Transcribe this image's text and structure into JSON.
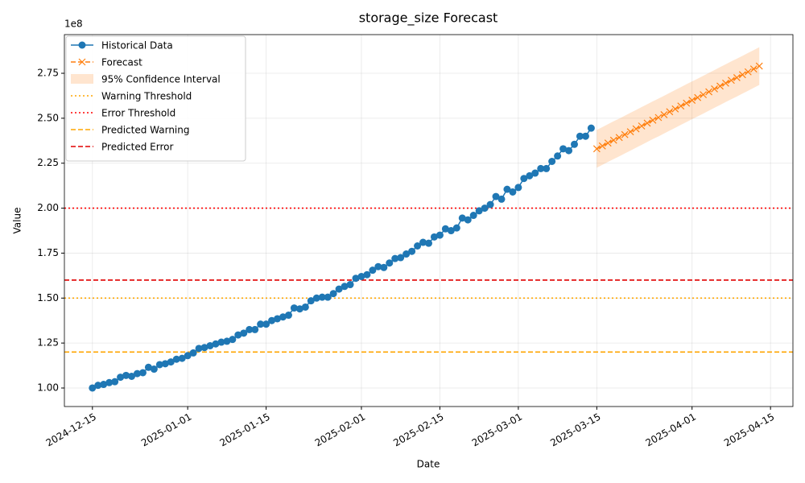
{
  "chart_data": {
    "type": "line",
    "title": "storage_size Forecast",
    "x_label": "Date",
    "y_label": "Value",
    "y_offset_label": "1e8",
    "grid": true,
    "legend_loc": "upper left",
    "xlim": [
      "2024-12-10",
      "2025-04-19"
    ],
    "xticks": [
      "2024-12-15",
      "2025-01-01",
      "2025-01-15",
      "2025-02-01",
      "2025-02-15",
      "2025-03-01",
      "2025-03-15",
      "2025-04-01",
      "2025-04-15"
    ],
    "ylim": [
      0.897,
      2.965
    ],
    "yticks": [
      {
        "value": 1.0,
        "label": "1.00"
      },
      {
        "value": 1.25,
        "label": "1.25"
      },
      {
        "value": 1.5,
        "label": "1.50"
      },
      {
        "value": 1.75,
        "label": "1.75"
      },
      {
        "value": 2.0,
        "label": "2.00"
      },
      {
        "value": 2.25,
        "label": "2.25"
      },
      {
        "value": 2.5,
        "label": "2.50"
      },
      {
        "value": 2.75,
        "label": "2.75"
      }
    ],
    "series": [
      {
        "name": "Historical Data",
        "kind": "line",
        "color": "#1f77b4",
        "marker": "o",
        "linestyle": "solid",
        "x": [
          "2024-12-15",
          "2024-12-16",
          "2024-12-17",
          "2024-12-18",
          "2024-12-19",
          "2024-12-20",
          "2024-12-21",
          "2024-12-22",
          "2024-12-23",
          "2024-12-24",
          "2024-12-25",
          "2024-12-26",
          "2024-12-27",
          "2024-12-28",
          "2024-12-29",
          "2024-12-30",
          "2024-12-31",
          "2025-01-01",
          "2025-01-02",
          "2025-01-03",
          "2025-01-04",
          "2025-01-05",
          "2025-01-06",
          "2025-01-07",
          "2025-01-08",
          "2025-01-09",
          "2025-01-10",
          "2025-01-11",
          "2025-01-12",
          "2025-01-13",
          "2025-01-14",
          "2025-01-15",
          "2025-01-16",
          "2025-01-17",
          "2025-01-18",
          "2025-01-19",
          "2025-01-20",
          "2025-01-21",
          "2025-01-22",
          "2025-01-23",
          "2025-01-24",
          "2025-01-25",
          "2025-01-26",
          "2025-01-27",
          "2025-01-28",
          "2025-01-29",
          "2025-01-30",
          "2025-01-31",
          "2025-02-01",
          "2025-02-02",
          "2025-02-03",
          "2025-02-04",
          "2025-02-05",
          "2025-02-06",
          "2025-02-07",
          "2025-02-08",
          "2025-02-09",
          "2025-02-10",
          "2025-02-11",
          "2025-02-12",
          "2025-02-13",
          "2025-02-14",
          "2025-02-15",
          "2025-02-16",
          "2025-02-17",
          "2025-02-18",
          "2025-02-19",
          "2025-02-20",
          "2025-02-21",
          "2025-02-22",
          "2025-02-23",
          "2025-02-24",
          "2025-02-25",
          "2025-02-26",
          "2025-02-27",
          "2025-02-28",
          "2025-03-01",
          "2025-03-02",
          "2025-03-03",
          "2025-03-04",
          "2025-03-05",
          "2025-03-06",
          "2025-03-07",
          "2025-03-08",
          "2025-03-09",
          "2025-03-10",
          "2025-03-11",
          "2025-03-12",
          "2025-03-13",
          "2025-03-14"
        ],
        "values": [
          1.0,
          1.015,
          1.02,
          1.03,
          1.035,
          1.06,
          1.07,
          1.065,
          1.08,
          1.085,
          1.115,
          1.105,
          1.13,
          1.135,
          1.145,
          1.16,
          1.165,
          1.18,
          1.195,
          1.22,
          1.225,
          1.235,
          1.245,
          1.255,
          1.26,
          1.27,
          1.295,
          1.305,
          1.325,
          1.325,
          1.355,
          1.355,
          1.375,
          1.385,
          1.395,
          1.405,
          1.445,
          1.44,
          1.45,
          1.485,
          1.5,
          1.505,
          1.505,
          1.525,
          1.55,
          1.565,
          1.575,
          1.61,
          1.62,
          1.63,
          1.655,
          1.675,
          1.67,
          1.695,
          1.72,
          1.725,
          1.745,
          1.76,
          1.79,
          1.81,
          1.805,
          1.84,
          1.85,
          1.885,
          1.875,
          1.89,
          1.945,
          1.935,
          1.96,
          1.985,
          2.0,
          2.02,
          2.065,
          2.05,
          2.105,
          2.09,
          2.115,
          2.165,
          2.18,
          2.195,
          2.22,
          2.22,
          2.26,
          2.29,
          2.33,
          2.32,
          2.355,
          2.4,
          2.4,
          2.445
        ]
      },
      {
        "name": "Forecast",
        "kind": "line",
        "color": "#ff7f0e",
        "marker": "x",
        "linestyle": "dashed",
        "x": [
          "2025-03-15",
          "2025-03-16",
          "2025-03-17",
          "2025-03-18",
          "2025-03-19",
          "2025-03-20",
          "2025-03-21",
          "2025-03-22",
          "2025-03-23",
          "2025-03-24",
          "2025-03-25",
          "2025-03-26",
          "2025-03-27",
          "2025-03-28",
          "2025-03-29",
          "2025-03-30",
          "2025-03-31",
          "2025-04-01",
          "2025-04-02",
          "2025-04-03",
          "2025-04-04",
          "2025-04-05",
          "2025-04-06",
          "2025-04-07",
          "2025-04-08",
          "2025-04-09",
          "2025-04-10",
          "2025-04-11",
          "2025-04-12",
          "2025-04-13"
        ],
        "values": [
          2.33,
          2.346,
          2.362,
          2.378,
          2.393,
          2.409,
          2.425,
          2.441,
          2.457,
          2.473,
          2.489,
          2.504,
          2.52,
          2.536,
          2.552,
          2.568,
          2.584,
          2.6,
          2.615,
          2.631,
          2.647,
          2.663,
          2.679,
          2.695,
          2.711,
          2.726,
          2.742,
          2.758,
          2.774,
          2.79
        ]
      },
      {
        "name": "95% Confidence Interval",
        "kind": "band",
        "color": "#ff7f0e",
        "x": [
          "2025-03-15",
          "2025-03-16",
          "2025-03-17",
          "2025-03-18",
          "2025-03-19",
          "2025-03-20",
          "2025-03-21",
          "2025-03-22",
          "2025-03-23",
          "2025-03-24",
          "2025-03-25",
          "2025-03-26",
          "2025-03-27",
          "2025-03-28",
          "2025-03-29",
          "2025-03-30",
          "2025-03-31",
          "2025-04-01",
          "2025-04-02",
          "2025-04-03",
          "2025-04-04",
          "2025-04-05",
          "2025-04-06",
          "2025-04-07",
          "2025-04-08",
          "2025-04-09",
          "2025-04-10",
          "2025-04-11",
          "2025-04-12",
          "2025-04-13"
        ],
        "lower": [
          2.225,
          2.241,
          2.257,
          2.273,
          2.288,
          2.304,
          2.32,
          2.336,
          2.352,
          2.368,
          2.384,
          2.399,
          2.415,
          2.431,
          2.447,
          2.463,
          2.479,
          2.495,
          2.51,
          2.526,
          2.542,
          2.558,
          2.574,
          2.59,
          2.606,
          2.621,
          2.637,
          2.653,
          2.669,
          2.685
        ],
        "upper": [
          2.435,
          2.451,
          2.467,
          2.483,
          2.498,
          2.514,
          2.53,
          2.546,
          2.562,
          2.578,
          2.594,
          2.609,
          2.625,
          2.641,
          2.657,
          2.673,
          2.689,
          2.705,
          2.72,
          2.736,
          2.752,
          2.768,
          2.784,
          2.8,
          2.816,
          2.831,
          2.847,
          2.863,
          2.879,
          2.895
        ]
      },
      {
        "name": "Warning Threshold",
        "kind": "hline",
        "color": "#ffa500",
        "linestyle": "dotted",
        "value": 1.5
      },
      {
        "name": "Error Threshold",
        "kind": "hline",
        "color": "#ff0000",
        "linestyle": "dotted",
        "value": 2.0
      },
      {
        "name": "Predicted Warning",
        "kind": "hline",
        "color": "#ffa500",
        "linestyle": "dashed",
        "value": 1.2
      },
      {
        "name": "Predicted Error",
        "kind": "hline",
        "color": "#e00000",
        "linestyle": "dashed",
        "value": 1.6
      }
    ]
  }
}
